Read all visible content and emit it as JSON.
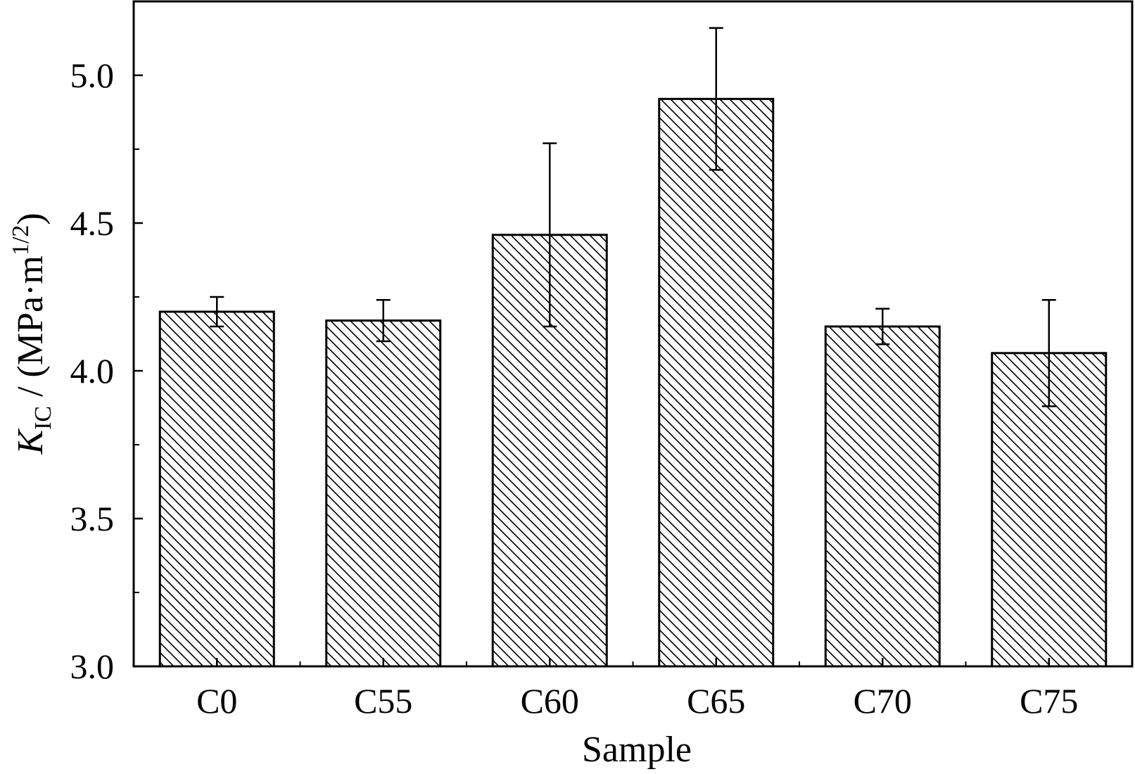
{
  "chart_data": {
    "type": "bar",
    "title": "",
    "xlabel": "Sample",
    "ylabel": {
      "symbol": "K",
      "subscript": "IC",
      "unit_prefix": " / (MPa·m",
      "unit_superscript": "1/2",
      "unit_suffix": ")"
    },
    "categories": [
      "C0",
      "C55",
      "C60",
      "C65",
      "C70",
      "C75"
    ],
    "values": [
      4.2,
      4.17,
      4.46,
      4.92,
      4.15,
      4.06
    ],
    "error_low": [
      4.15,
      4.1,
      4.15,
      4.68,
      4.09,
      3.88
    ],
    "error_high": [
      4.25,
      4.24,
      4.77,
      5.16,
      4.21,
      4.24
    ],
    "ylim": [
      3.0,
      5.25
    ],
    "yticks": [
      3.0,
      3.5,
      4.0,
      4.5,
      5.0
    ],
    "ytick_labels": [
      "3.0",
      "3.5",
      "4.0",
      "4.5",
      "5.0"
    ],
    "y_minor_step": 0.25,
    "grid": false,
    "fill": "diagonal hatch",
    "bar_color": "#000000",
    "background": "#ffffff"
  }
}
